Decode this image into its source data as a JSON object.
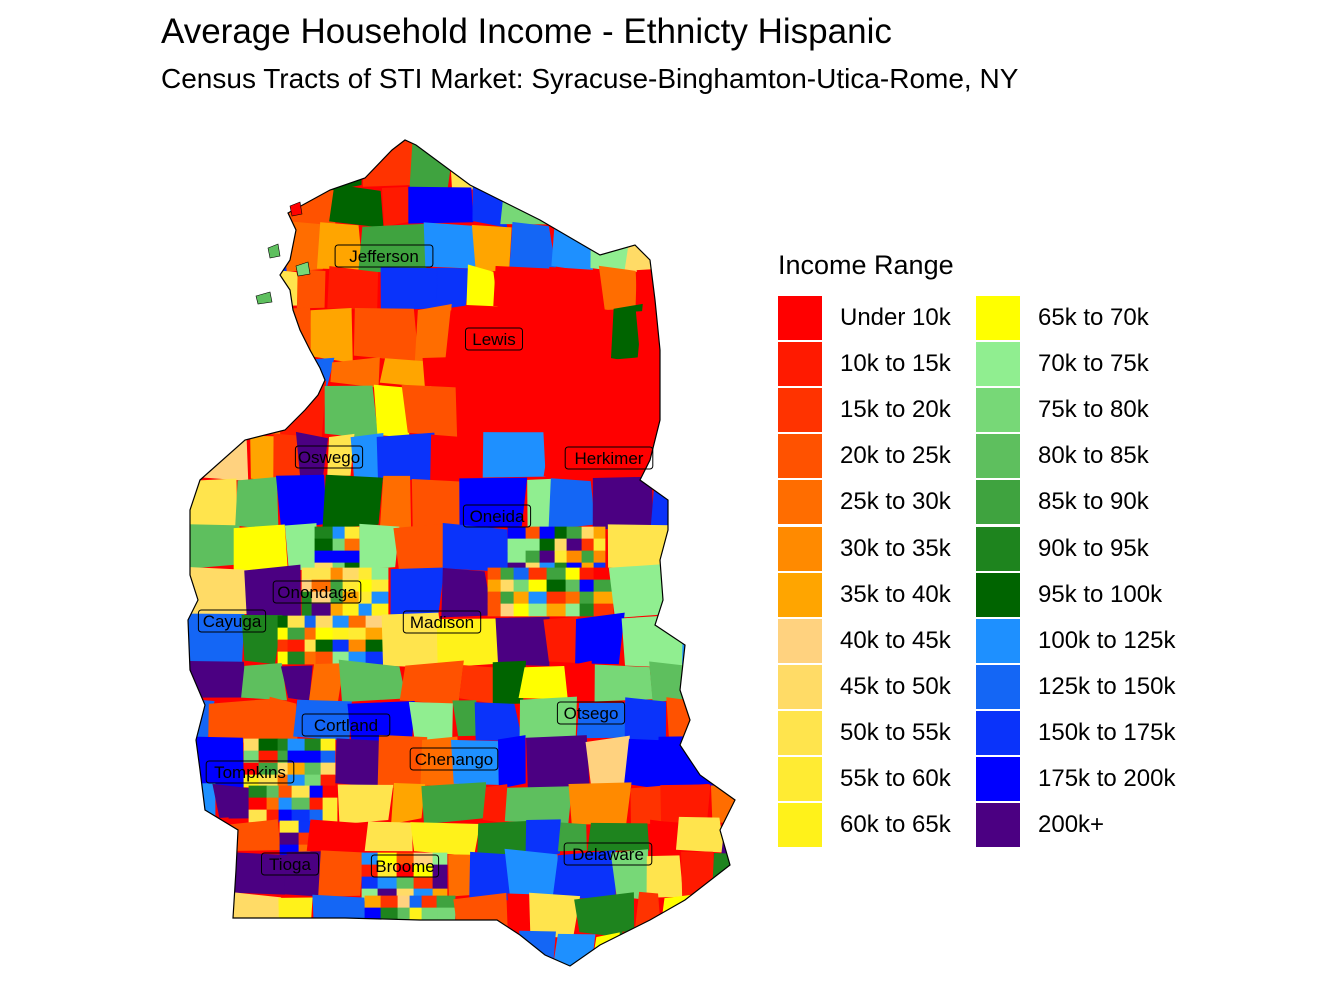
{
  "title": "Average Household Income - Ethnicty Hispanic",
  "subtitle": "Census Tracts of STI Market: Syracuse-Binghamton-Utica-Rome, NY",
  "legend": {
    "title": "Income Range",
    "items": [
      {
        "label": "Under 10k",
        "color": "#FF0000"
      },
      {
        "label": "10k to 15k",
        "color": "#FF1A00"
      },
      {
        "label": "15k to 20k",
        "color": "#FF3300"
      },
      {
        "label": "20k to 25k",
        "color": "#FF5200"
      },
      {
        "label": "25k to 30k",
        "color": "#FF6D00"
      },
      {
        "label": "30k to 35k",
        "color": "#FF8A00"
      },
      {
        "label": "35k to 40k",
        "color": "#FFA500"
      },
      {
        "label": "40k to 45k",
        "color": "#FFD27F"
      },
      {
        "label": "45k to 50k",
        "color": "#FFDB66"
      },
      {
        "label": "50k to 55k",
        "color": "#FFE44D"
      },
      {
        "label": "55k to 60k",
        "color": "#FFEB33"
      },
      {
        "label": "60k to 65k",
        "color": "#FFF21A"
      },
      {
        "label": "65k to 70k",
        "color": "#FFFF00"
      },
      {
        "label": "70k to 75k",
        "color": "#90EE90"
      },
      {
        "label": "75k to 80k",
        "color": "#77D877"
      },
      {
        "label": "80k to 85k",
        "color": "#5EBF5E"
      },
      {
        "label": "85k to 90k",
        "color": "#3FA33F"
      },
      {
        "label": "90k to 95k",
        "color": "#1E841E"
      },
      {
        "label": "95k to 100k",
        "color": "#006400"
      },
      {
        "label": "100k to 125k",
        "color": "#1E90FF"
      },
      {
        "label": "125k to 150k",
        "color": "#1466F5"
      },
      {
        "label": "150k to 175k",
        "color": "#0A33FA"
      },
      {
        "label": "175k to 200k",
        "color": "#0000FF"
      },
      {
        "label": "200k+",
        "color": "#4B0082"
      }
    ]
  },
  "counties": [
    {
      "name": "Jefferson"
    },
    {
      "name": "Lewis"
    },
    {
      "name": "Oswego"
    },
    {
      "name": "Herkimer"
    },
    {
      "name": "Oneida"
    },
    {
      "name": "Onondaga"
    },
    {
      "name": "Cayuga"
    },
    {
      "name": "Madison"
    },
    {
      "name": "Otsego"
    },
    {
      "name": "Cortland"
    },
    {
      "name": "Chenango"
    },
    {
      "name": "Tompkins"
    },
    {
      "name": "Delaware"
    },
    {
      "name": "Tioga"
    },
    {
      "name": "Broome"
    }
  ]
}
